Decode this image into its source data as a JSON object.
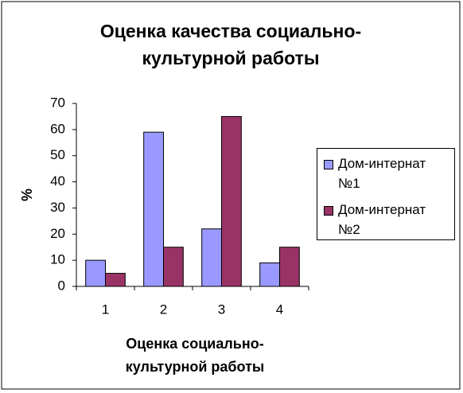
{
  "chart_data": {
    "type": "bar",
    "title": "Оценка качества социально-культурной работы",
    "x_label": "Оценка социально-культурной работы",
    "y_label": "%",
    "categories": [
      "1",
      "2",
      "3",
      "4"
    ],
    "series": [
      {
        "name": "Дом-интернат №1",
        "color": "#9999ff",
        "values": [
          10,
          59,
          22,
          9
        ]
      },
      {
        "name": "Дом-интернат №2",
        "color": "#993366",
        "values": [
          5,
          15,
          65,
          15
        ]
      }
    ],
    "ylim": [
      0,
      70
    ],
    "yticks": [
      0,
      10,
      20,
      30,
      40,
      50,
      60,
      70
    ],
    "legend": "right"
  }
}
